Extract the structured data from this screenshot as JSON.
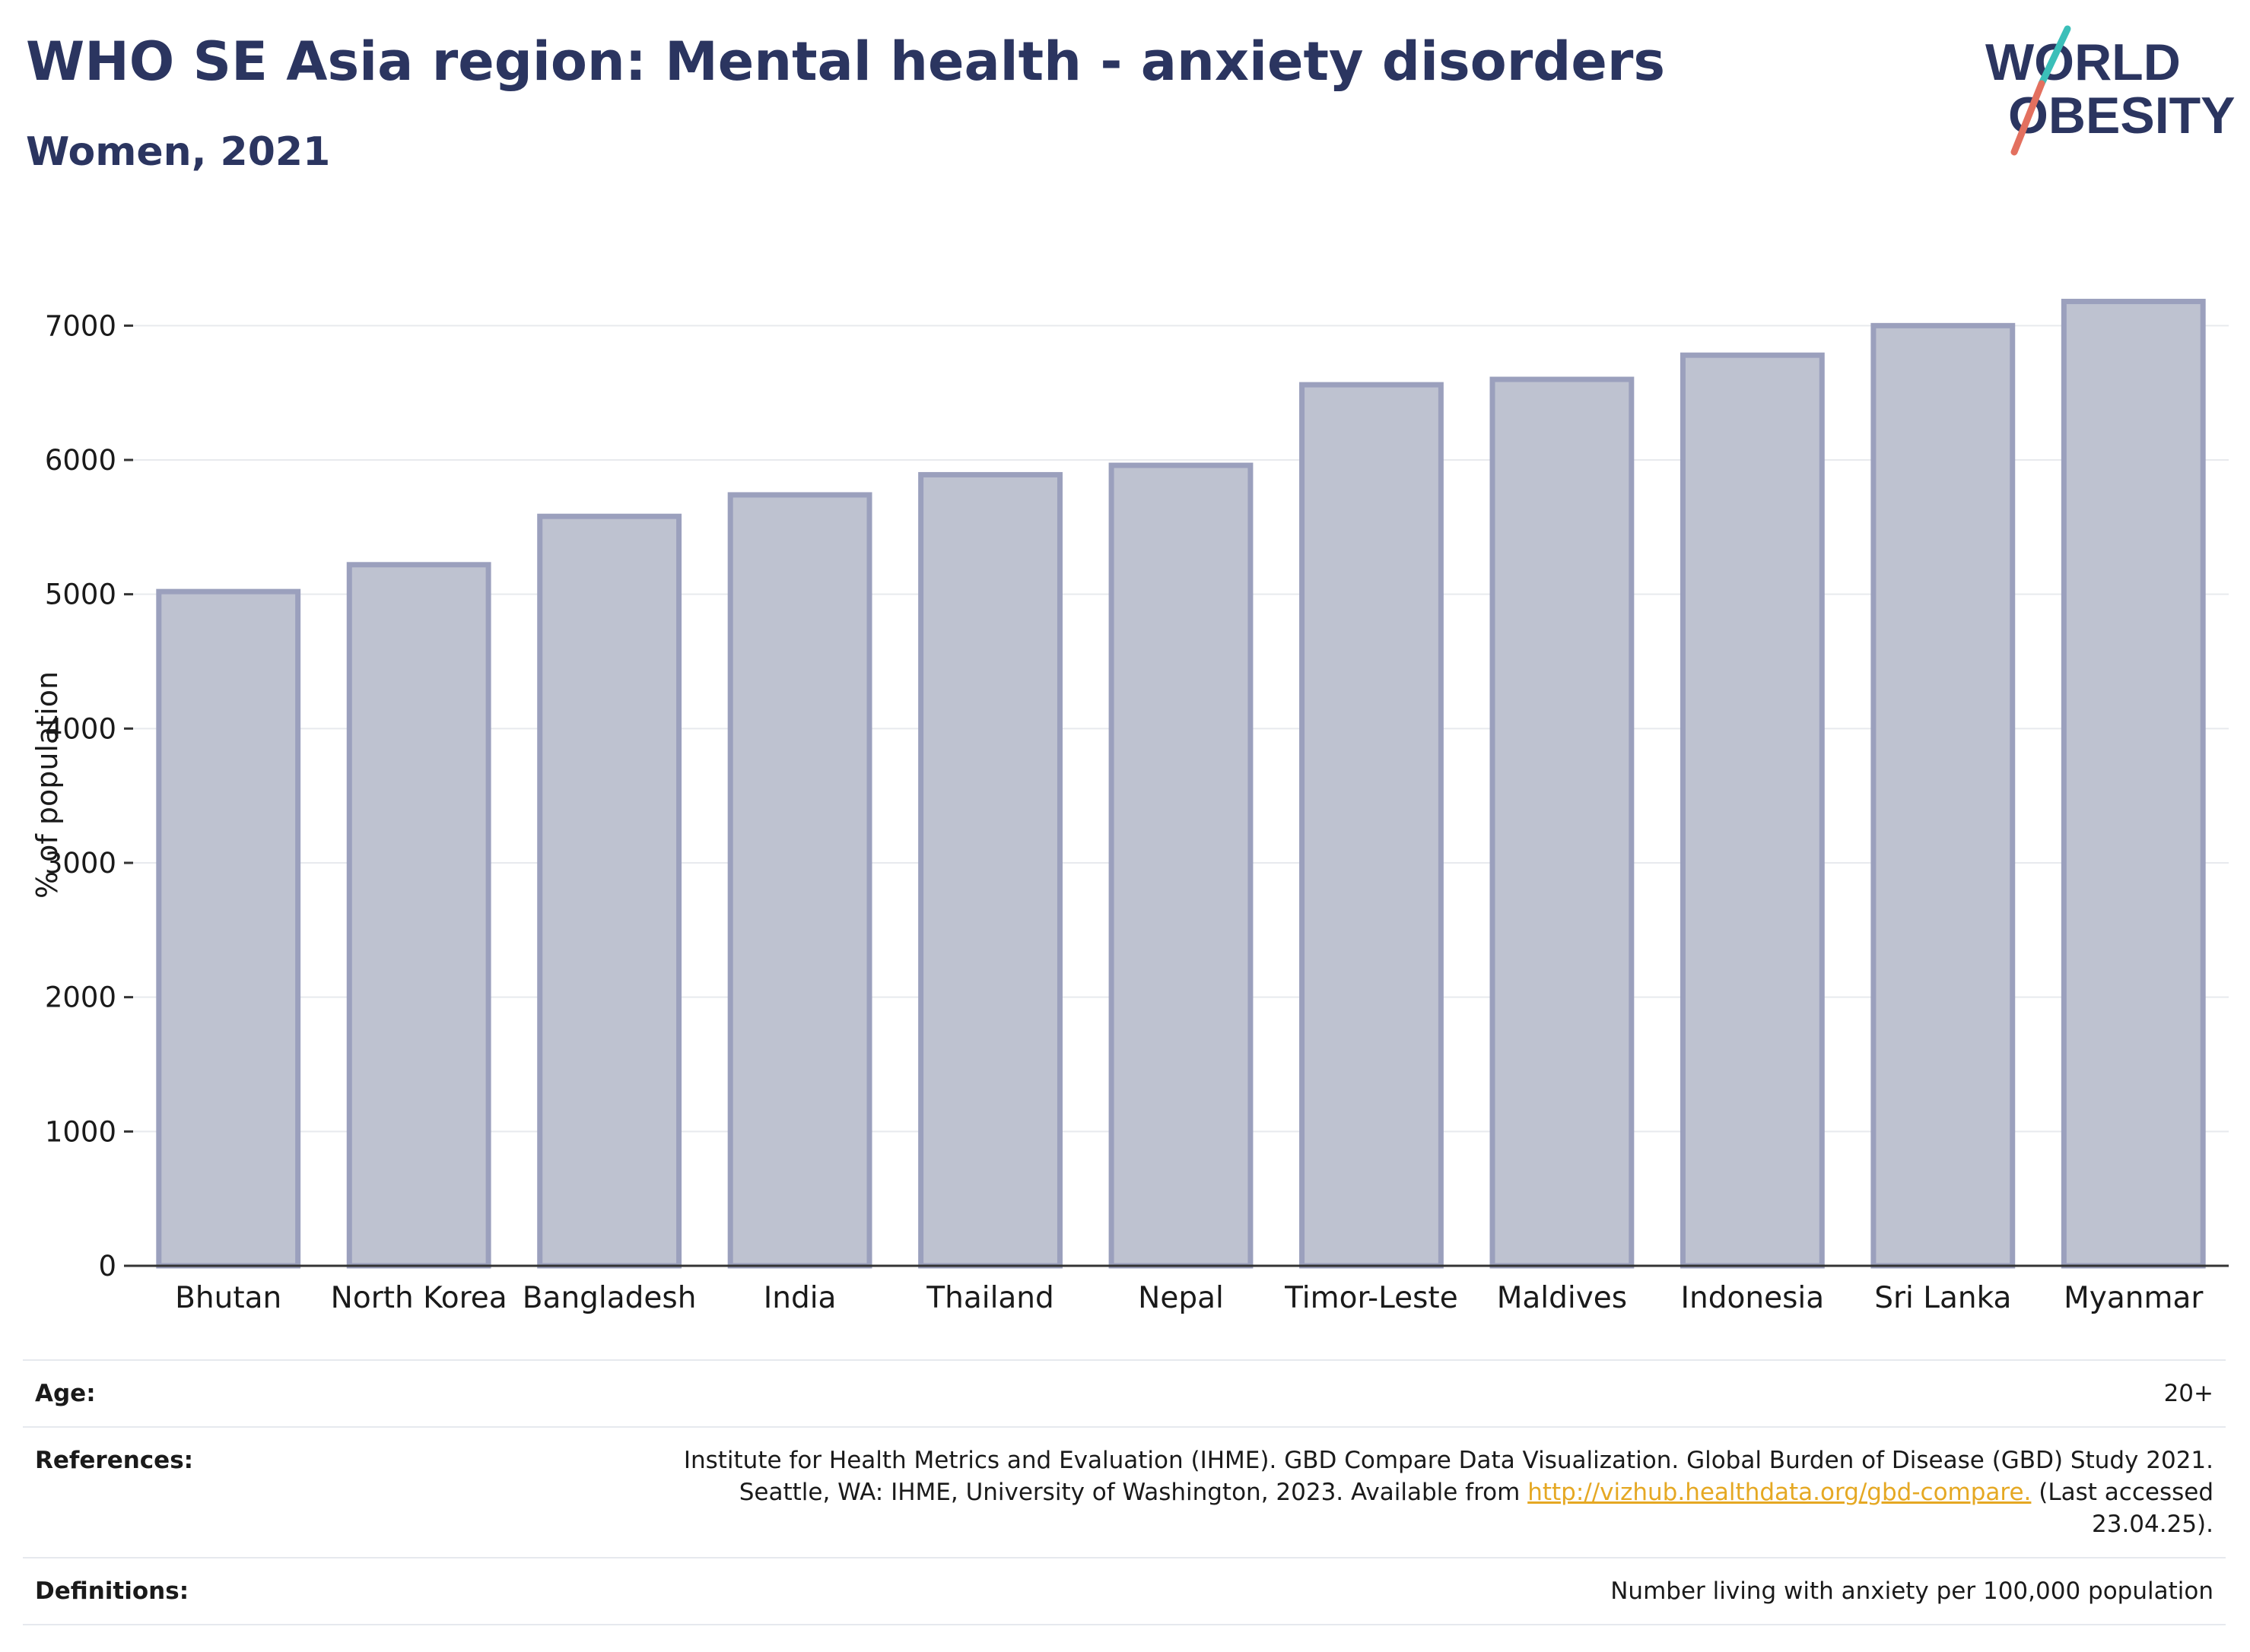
{
  "header": {
    "title": "WHO SE Asia region: Mental health - anxiety disorders",
    "subtitle": "Women, 2021"
  },
  "logo": {
    "line1": "WORLD",
    "line2": "OBESITY",
    "accent_teal": "#3bbfb9",
    "accent_coral": "#e3705f"
  },
  "chart_data": {
    "type": "bar",
    "categories": [
      "Bhutan",
      "North Korea",
      "Bangladesh",
      "India",
      "Thailand",
      "Nepal",
      "Timor-Leste",
      "Maldives",
      "Indonesia",
      "Sri Lanka",
      "Myanmar"
    ],
    "values": [
      5020,
      5220,
      5580,
      5740,
      5890,
      5960,
      6560,
      6600,
      6780,
      7000,
      7180
    ],
    "ylabel": "% of population",
    "xlabel": "",
    "ylim": [
      0,
      7500
    ],
    "yticks": [
      0,
      1000,
      2000,
      3000,
      4000,
      5000,
      6000,
      7000
    ],
    "grid": true,
    "bar_fill": "#bec2d0",
    "bar_stroke": "#9ba0bd"
  },
  "info": {
    "age_label": "Age:",
    "age_value": "20+",
    "references_label": "References:",
    "references_text1": "Institute for Health Metrics and Evaluation (IHME). GBD Compare Data Visualization. Global Burden of Disease (GBD) Study 2021.",
    "references_text2": "Seattle, WA: IHME, University of Washington, 2023. Available from",
    "references_link": "http://vizhub.healthdata.org/gbd-compare.",
    "references_text3": "(Last accessed",
    "references_text4": "23.04.25).",
    "definitions_label": "Definitions:",
    "definitions_value": "Number living with anxiety per 100,000 population"
  }
}
